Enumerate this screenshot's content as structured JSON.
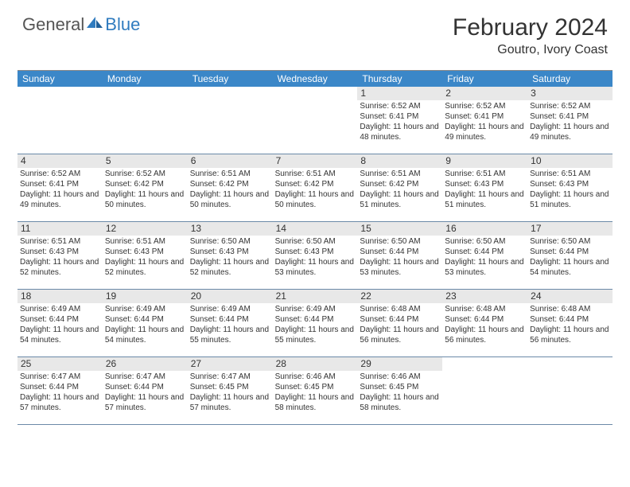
{
  "brand": {
    "part1": "General",
    "part2": "Blue"
  },
  "title": "February 2024",
  "location": "Goutro, Ivory Coast",
  "colors": {
    "header_bg": "#3b87c8",
    "header_text": "#ffffff",
    "daynum_bg": "#e8e8e8",
    "row_border": "#6b8aa8",
    "logo_blue": "#2f7bbf",
    "logo_gray": "#555555",
    "text": "#333333",
    "background": "#ffffff"
  },
  "day_headers": [
    "Sunday",
    "Monday",
    "Tuesday",
    "Wednesday",
    "Thursday",
    "Friday",
    "Saturday"
  ],
  "weeks": [
    [
      {
        "num": "",
        "lines": []
      },
      {
        "num": "",
        "lines": []
      },
      {
        "num": "",
        "lines": []
      },
      {
        "num": "",
        "lines": []
      },
      {
        "num": "1",
        "lines": [
          "Sunrise: 6:52 AM",
          "Sunset: 6:41 PM",
          "Daylight: 11 hours and 48 minutes."
        ]
      },
      {
        "num": "2",
        "lines": [
          "Sunrise: 6:52 AM",
          "Sunset: 6:41 PM",
          "Daylight: 11 hours and 49 minutes."
        ]
      },
      {
        "num": "3",
        "lines": [
          "Sunrise: 6:52 AM",
          "Sunset: 6:41 PM",
          "Daylight: 11 hours and 49 minutes."
        ]
      }
    ],
    [
      {
        "num": "4",
        "lines": [
          "Sunrise: 6:52 AM",
          "Sunset: 6:41 PM",
          "Daylight: 11 hours and 49 minutes."
        ]
      },
      {
        "num": "5",
        "lines": [
          "Sunrise: 6:52 AM",
          "Sunset: 6:42 PM",
          "Daylight: 11 hours and 50 minutes."
        ]
      },
      {
        "num": "6",
        "lines": [
          "Sunrise: 6:51 AM",
          "Sunset: 6:42 PM",
          "Daylight: 11 hours and 50 minutes."
        ]
      },
      {
        "num": "7",
        "lines": [
          "Sunrise: 6:51 AM",
          "Sunset: 6:42 PM",
          "Daylight: 11 hours and 50 minutes."
        ]
      },
      {
        "num": "8",
        "lines": [
          "Sunrise: 6:51 AM",
          "Sunset: 6:42 PM",
          "Daylight: 11 hours and 51 minutes."
        ]
      },
      {
        "num": "9",
        "lines": [
          "Sunrise: 6:51 AM",
          "Sunset: 6:43 PM",
          "Daylight: 11 hours and 51 minutes."
        ]
      },
      {
        "num": "10",
        "lines": [
          "Sunrise: 6:51 AM",
          "Sunset: 6:43 PM",
          "Daylight: 11 hours and 51 minutes."
        ]
      }
    ],
    [
      {
        "num": "11",
        "lines": [
          "Sunrise: 6:51 AM",
          "Sunset: 6:43 PM",
          "Daylight: 11 hours and 52 minutes."
        ]
      },
      {
        "num": "12",
        "lines": [
          "Sunrise: 6:51 AM",
          "Sunset: 6:43 PM",
          "Daylight: 11 hours and 52 minutes."
        ]
      },
      {
        "num": "13",
        "lines": [
          "Sunrise: 6:50 AM",
          "Sunset: 6:43 PM",
          "Daylight: 11 hours and 52 minutes."
        ]
      },
      {
        "num": "14",
        "lines": [
          "Sunrise: 6:50 AM",
          "Sunset: 6:43 PM",
          "Daylight: 11 hours and 53 minutes."
        ]
      },
      {
        "num": "15",
        "lines": [
          "Sunrise: 6:50 AM",
          "Sunset: 6:44 PM",
          "Daylight: 11 hours and 53 minutes."
        ]
      },
      {
        "num": "16",
        "lines": [
          "Sunrise: 6:50 AM",
          "Sunset: 6:44 PM",
          "Daylight: 11 hours and 53 minutes."
        ]
      },
      {
        "num": "17",
        "lines": [
          "Sunrise: 6:50 AM",
          "Sunset: 6:44 PM",
          "Daylight: 11 hours and 54 minutes."
        ]
      }
    ],
    [
      {
        "num": "18",
        "lines": [
          "Sunrise: 6:49 AM",
          "Sunset: 6:44 PM",
          "Daylight: 11 hours and 54 minutes."
        ]
      },
      {
        "num": "19",
        "lines": [
          "Sunrise: 6:49 AM",
          "Sunset: 6:44 PM",
          "Daylight: 11 hours and 54 minutes."
        ]
      },
      {
        "num": "20",
        "lines": [
          "Sunrise: 6:49 AM",
          "Sunset: 6:44 PM",
          "Daylight: 11 hours and 55 minutes."
        ]
      },
      {
        "num": "21",
        "lines": [
          "Sunrise: 6:49 AM",
          "Sunset: 6:44 PM",
          "Daylight: 11 hours and 55 minutes."
        ]
      },
      {
        "num": "22",
        "lines": [
          "Sunrise: 6:48 AM",
          "Sunset: 6:44 PM",
          "Daylight: 11 hours and 56 minutes."
        ]
      },
      {
        "num": "23",
        "lines": [
          "Sunrise: 6:48 AM",
          "Sunset: 6:44 PM",
          "Daylight: 11 hours and 56 minutes."
        ]
      },
      {
        "num": "24",
        "lines": [
          "Sunrise: 6:48 AM",
          "Sunset: 6:44 PM",
          "Daylight: 11 hours and 56 minutes."
        ]
      }
    ],
    [
      {
        "num": "25",
        "lines": [
          "Sunrise: 6:47 AM",
          "Sunset: 6:44 PM",
          "Daylight: 11 hours and 57 minutes."
        ]
      },
      {
        "num": "26",
        "lines": [
          "Sunrise: 6:47 AM",
          "Sunset: 6:44 PM",
          "Daylight: 11 hours and 57 minutes."
        ]
      },
      {
        "num": "27",
        "lines": [
          "Sunrise: 6:47 AM",
          "Sunset: 6:45 PM",
          "Daylight: 11 hours and 57 minutes."
        ]
      },
      {
        "num": "28",
        "lines": [
          "Sunrise: 6:46 AM",
          "Sunset: 6:45 PM",
          "Daylight: 11 hours and 58 minutes."
        ]
      },
      {
        "num": "29",
        "lines": [
          "Sunrise: 6:46 AM",
          "Sunset: 6:45 PM",
          "Daylight: 11 hours and 58 minutes."
        ]
      },
      {
        "num": "",
        "lines": []
      },
      {
        "num": "",
        "lines": []
      }
    ]
  ]
}
